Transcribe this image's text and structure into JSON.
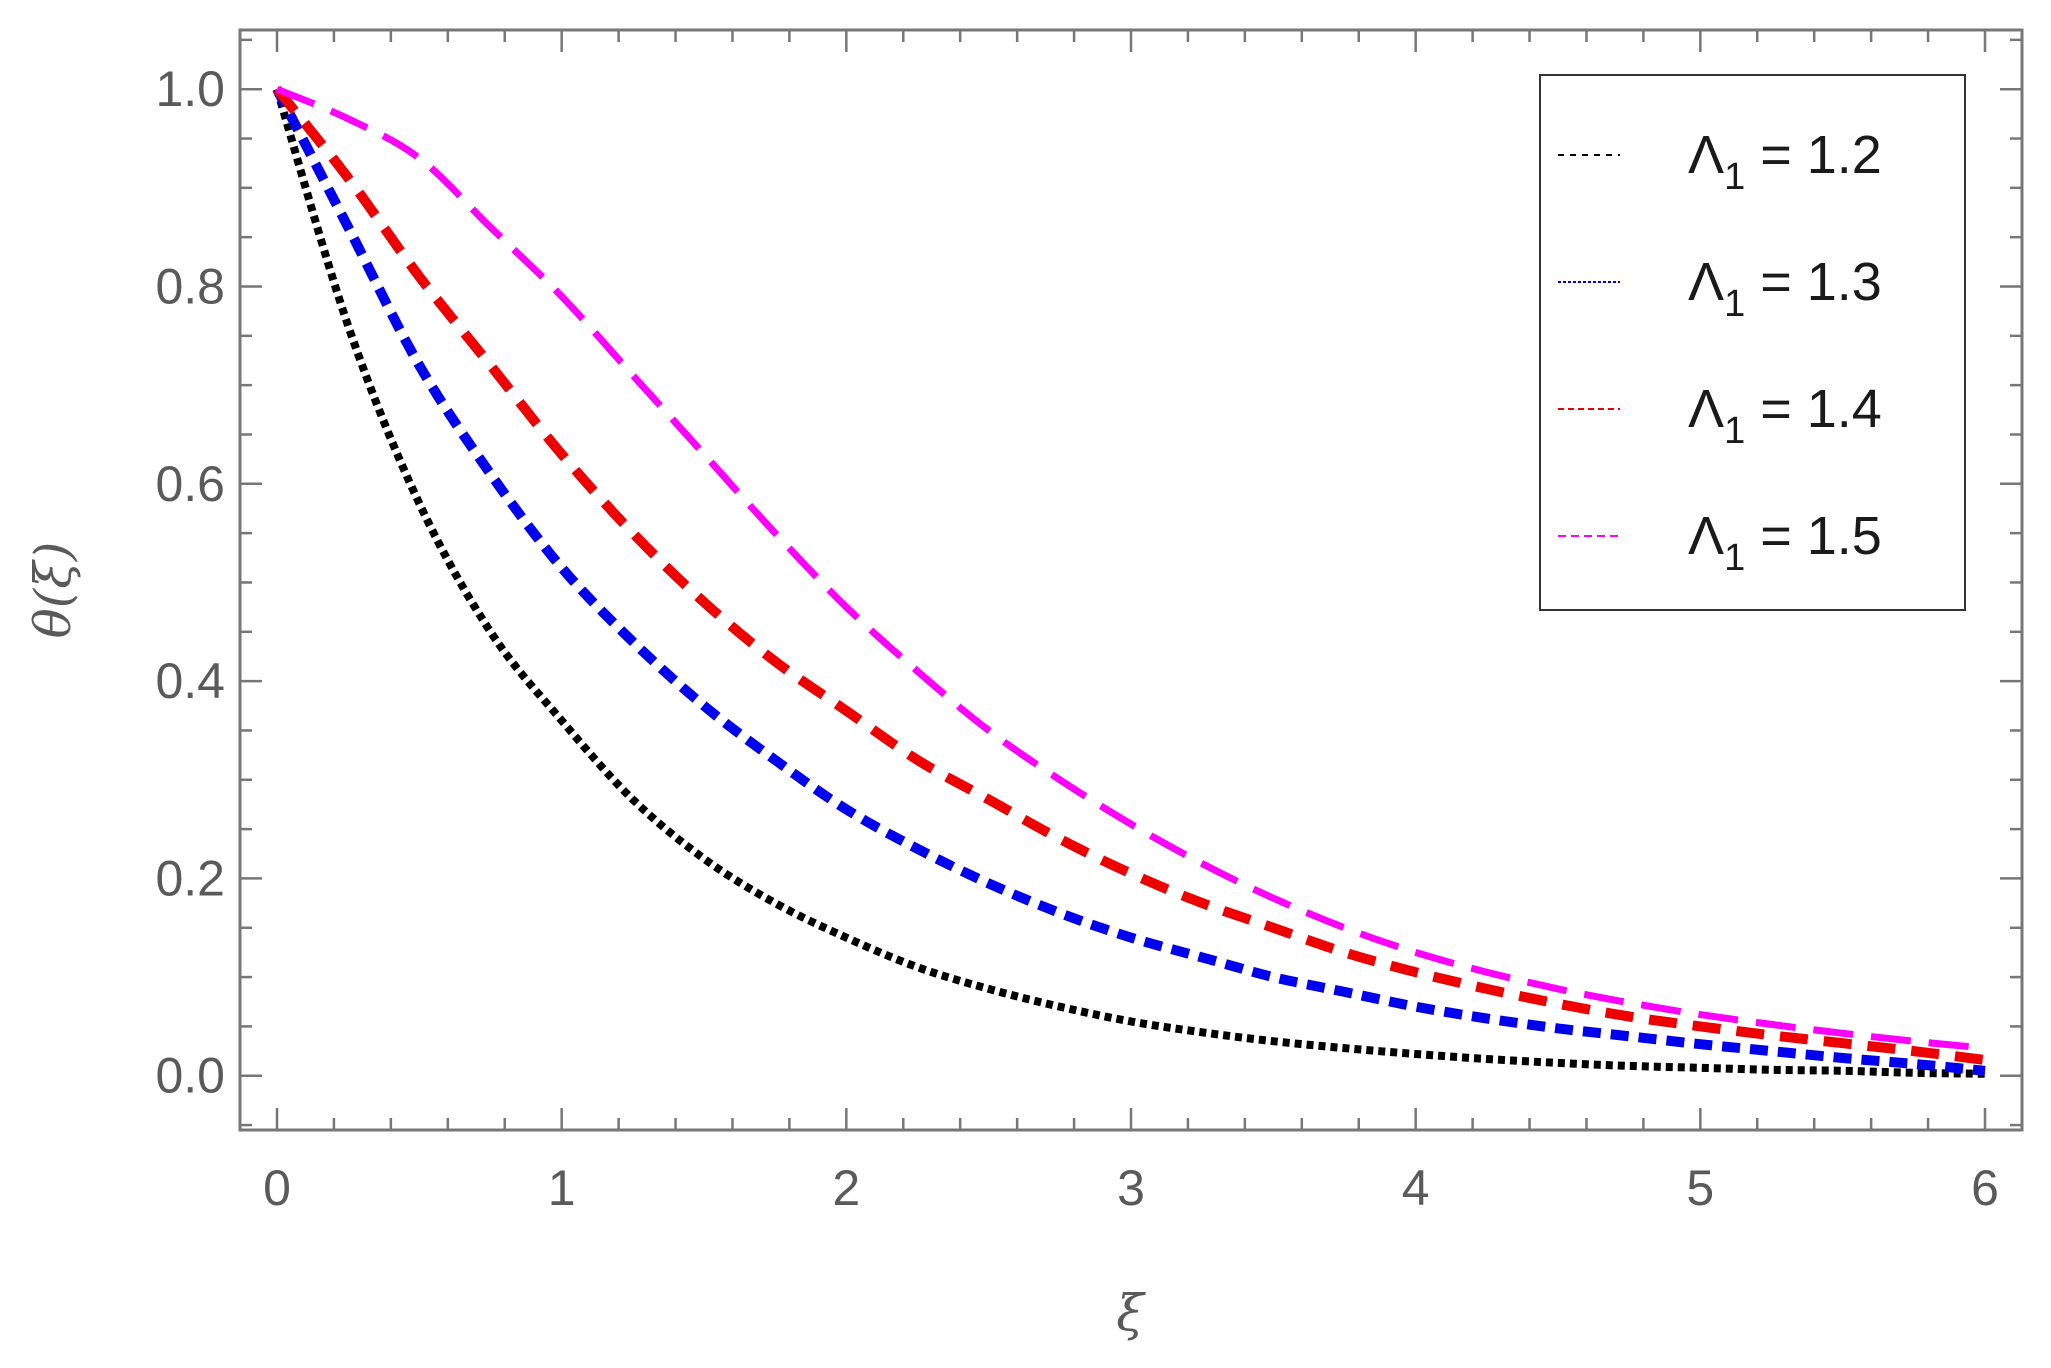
{
  "chart_data": {
    "type": "line",
    "title": "",
    "xlabel": "ξ",
    "ylabel": "θ(ξ)",
    "xlim": [
      -0.13,
      6.13
    ],
    "ylim": [
      -0.055,
      1.06
    ],
    "xticks": [
      "0",
      "1",
      "2",
      "3",
      "4",
      "5",
      "6"
    ],
    "yticks": [
      "0.0",
      "0.2",
      "0.4",
      "0.6",
      "0.8",
      "1.0"
    ],
    "grid": false,
    "legend_position": "top-right",
    "x": [
      0,
      0.25,
      0.5,
      0.75,
      1,
      1.25,
      1.5,
      1.75,
      2,
      2.25,
      2.5,
      2.75,
      3,
      3.25,
      3.5,
      3.75,
      4,
      4.25,
      4.5,
      4.75,
      5,
      5.25,
      5.5,
      5.75,
      6
    ],
    "series": [
      {
        "name": "Λ1 = 1.2",
        "color": "#000000",
        "style": "dotted",
        "values": [
          1.0,
          0.76,
          0.58,
          0.45,
          0.36,
          0.28,
          0.22,
          0.175,
          0.14,
          0.11,
          0.088,
          0.07,
          0.055,
          0.044,
          0.035,
          0.028,
          0.022,
          0.017,
          0.013,
          0.01,
          0.008,
          0.006,
          0.005,
          0.003,
          0.002
        ]
      },
      {
        "name": "Λ1 = 1.3",
        "color": "#0000ee",
        "style": "dashed-short",
        "values": [
          1.0,
          0.86,
          0.72,
          0.61,
          0.515,
          0.44,
          0.375,
          0.32,
          0.27,
          0.23,
          0.195,
          0.165,
          0.14,
          0.12,
          0.1,
          0.085,
          0.07,
          0.058,
          0.048,
          0.04,
          0.032,
          0.025,
          0.018,
          0.012,
          0.005
        ]
      },
      {
        "name": "Λ1 = 1.4",
        "color": "#ee0000",
        "style": "dashed",
        "values": [
          1.0,
          0.91,
          0.81,
          0.72,
          0.63,
          0.55,
          0.48,
          0.42,
          0.37,
          0.32,
          0.28,
          0.24,
          0.205,
          0.175,
          0.15,
          0.125,
          0.105,
          0.088,
          0.073,
          0.06,
          0.05,
          0.041,
          0.033,
          0.025,
          0.016
        ]
      },
      {
        "name": "Λ1 = 1.5",
        "color": "#ff00ff",
        "style": "long-dashed",
        "values": [
          1.0,
          0.97,
          0.93,
          0.86,
          0.79,
          0.71,
          0.63,
          0.55,
          0.475,
          0.41,
          0.35,
          0.3,
          0.255,
          0.215,
          0.18,
          0.15,
          0.125,
          0.105,
          0.088,
          0.074,
          0.062,
          0.052,
          0.043,
          0.035,
          0.028
        ]
      }
    ],
    "legend": [
      {
        "main": "Λ",
        "sub": "1",
        "rest": " = 1.2",
        "color": "#000000",
        "dash": "6 6"
      },
      {
        "main": "Λ",
        "sub": "1",
        "rest": " = 1.3",
        "color": "#0000ee",
        "dash": "3 2"
      },
      {
        "main": "Λ",
        "sub": "1",
        "rest": " = 1.4",
        "color": "#ee0000",
        "dash": "6 4"
      },
      {
        "main": "Λ",
        "sub": "1",
        "rest": " = 1.5",
        "color": "#ff00ff",
        "dash": "8 5"
      }
    ]
  }
}
